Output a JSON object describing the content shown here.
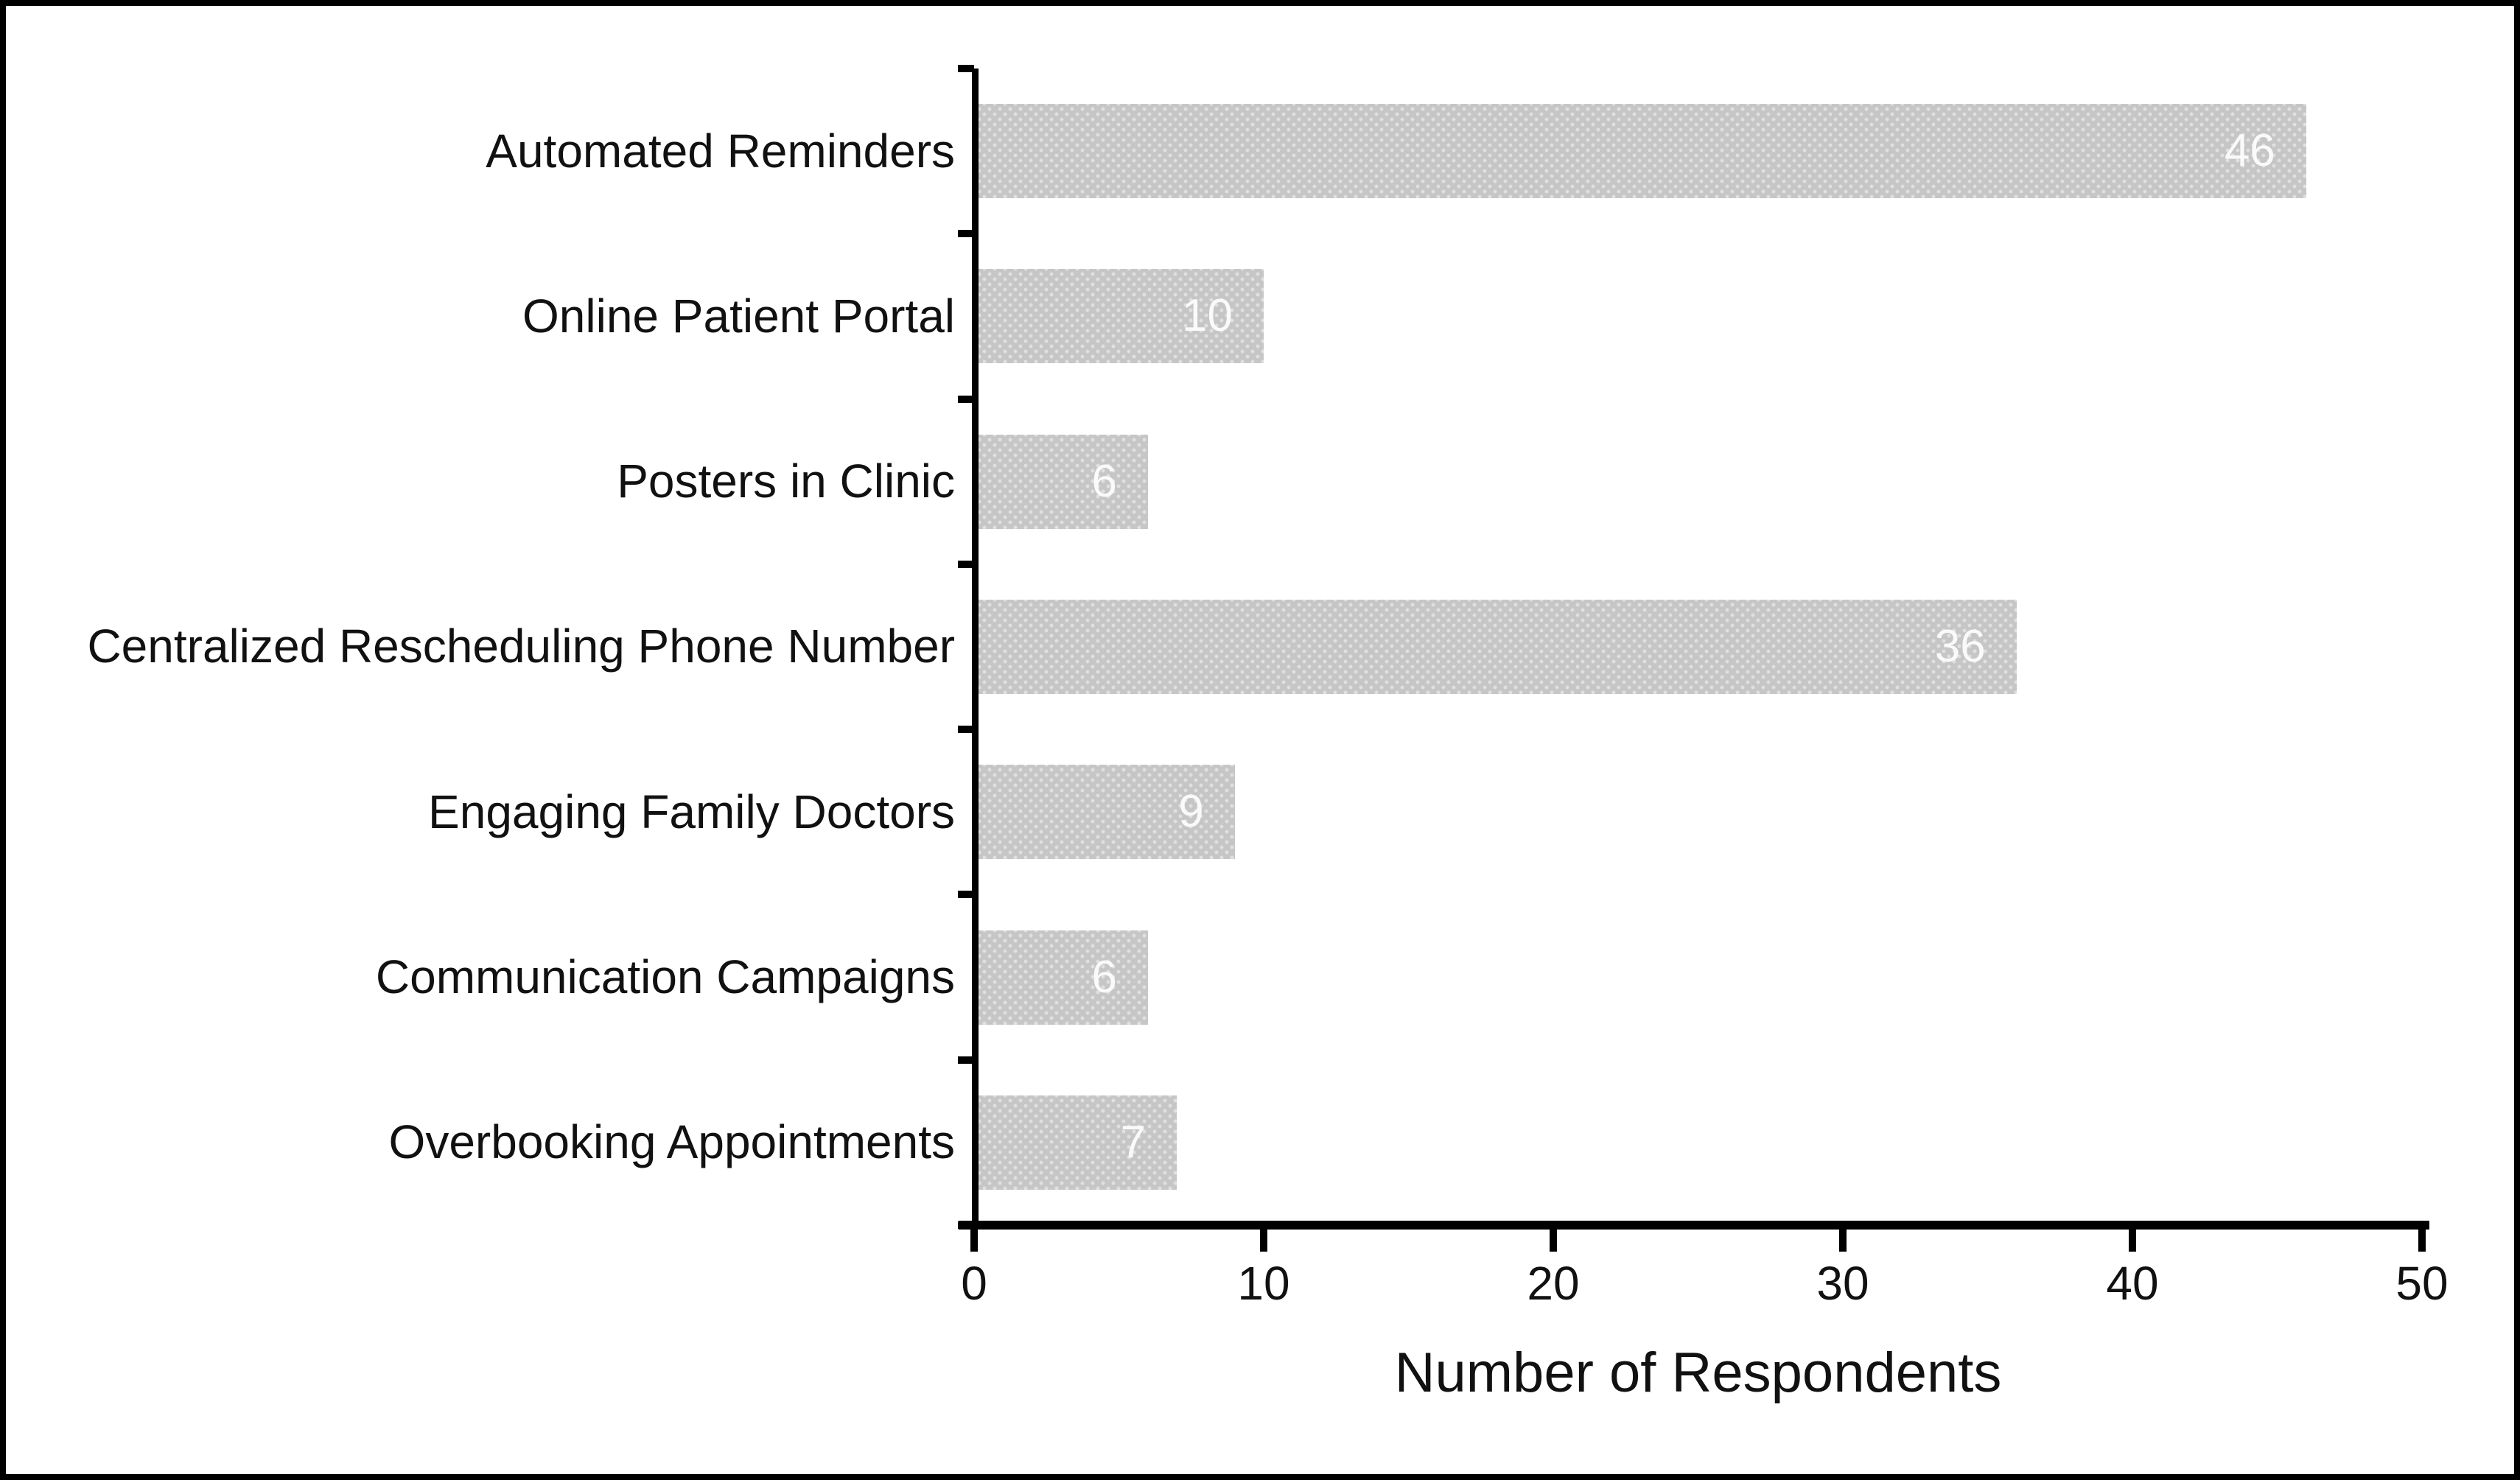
{
  "chart_data": {
    "type": "bar",
    "orientation": "horizontal",
    "categories": [
      "Automated Reminders",
      "Online Patient Portal",
      "Posters in Clinic",
      "Centralized Rescheduling Phone Number",
      "Engaging Family Doctors",
      "Communication Campaigns",
      "Overbooking Appointments"
    ],
    "values": [
      46,
      10,
      6,
      36,
      9,
      6,
      7
    ],
    "bar_labels": [
      "46",
      "10",
      "6",
      "36",
      "9",
      "6",
      "7"
    ],
    "xlabel": "Number of Respondents",
    "xticks": [
      0,
      10,
      20,
      30,
      40,
      50
    ],
    "xlim": [
      0,
      50
    ],
    "grid": false,
    "legend_position": "none",
    "colors": {
      "bar_fill": "#c6c6c6",
      "bar_dot_pattern": "#e0e0e0",
      "value_label": "#fafafa",
      "axis": "#000000",
      "text": "#111111",
      "background": "#ffffff",
      "frame_border": "#000000"
    }
  }
}
